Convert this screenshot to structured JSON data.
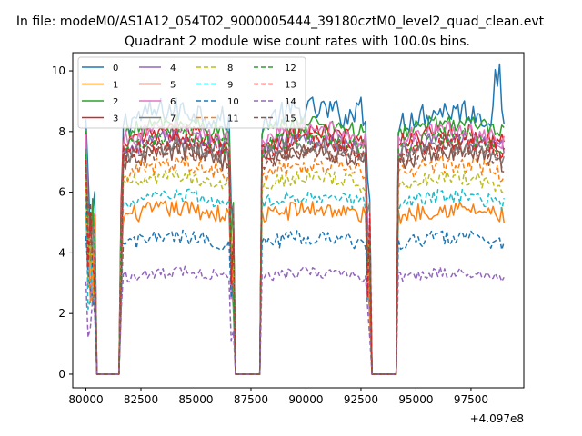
{
  "chart_data": {
    "type": "line",
    "suptitle": "In file: modeM0/AS1A12_054T02_9000005444_39180cztM0_level2_quad_clean.evt",
    "title": "Quadrant 2 module wise count rates with 100.0s bins.",
    "xlabel": "",
    "ylabel": "",
    "x_offset_label": "+4.097e8",
    "xlim": [
      79400,
      99900
    ],
    "ylim": [
      -0.45,
      10.6
    ],
    "x_ticks": [
      80000,
      82500,
      85000,
      87500,
      90000,
      92500,
      95000,
      97500
    ],
    "x_tick_labels": [
      "80000",
      "82500",
      "85000",
      "87500",
      "90000",
      "92500",
      "95000",
      "97500"
    ],
    "y_ticks": [
      0,
      2,
      4,
      6,
      8,
      10
    ],
    "y_tick_labels": [
      "0",
      "2",
      "4",
      "6",
      "8",
      "10"
    ],
    "legend_position": "upper-left",
    "legend_columns": 4,
    "on_intervals": [
      [
        81700,
        86500
      ],
      [
        88000,
        92700
      ],
      [
        94200,
        99000
      ]
    ],
    "off_intervals": [
      [
        80500,
        81500
      ],
      [
        86800,
        88000
      ],
      [
        93000,
        94100
      ]
    ],
    "series": [
      {
        "name": "0",
        "color": "#1f77b4",
        "style": "solid",
        "level": 8.3,
        "noise": 0.45,
        "peak": 10.1
      },
      {
        "name": "1",
        "color": "#ff7f0e",
        "style": "solid",
        "level": 5.2,
        "noise": 0.3
      },
      {
        "name": "2",
        "color": "#2ca02c",
        "style": "solid",
        "level": 7.9,
        "noise": 0.3
      },
      {
        "name": "3",
        "color": "#d62728",
        "style": "solid",
        "level": 7.6,
        "noise": 0.3
      },
      {
        "name": "4",
        "color": "#9467bd",
        "style": "solid",
        "level": 7.4,
        "noise": 0.3
      },
      {
        "name": "5",
        "color": "#8c564b",
        "style": "solid",
        "level": 7.0,
        "noise": 0.35
      },
      {
        "name": "6",
        "color": "#e377c2",
        "style": "solid",
        "level": 7.7,
        "noise": 0.3
      },
      {
        "name": "7",
        "color": "#7f7f7f",
        "style": "solid",
        "level": 7.2,
        "noise": 0.3
      },
      {
        "name": "8",
        "color": "#bcbd22",
        "style": "dashed",
        "level": 6.2,
        "noise": 0.25
      },
      {
        "name": "9",
        "color": "#17becf",
        "style": "dashed",
        "level": 5.6,
        "noise": 0.25
      },
      {
        "name": "10",
        "color": "#1f77b4",
        "style": "dashed",
        "level": 4.3,
        "noise": 0.25
      },
      {
        "name": "11",
        "color": "#ff7f0e",
        "style": "dashed",
        "level": 6.6,
        "noise": 0.3
      },
      {
        "name": "12",
        "color": "#2ca02c",
        "style": "dashed",
        "level": 7.5,
        "noise": 0.3
      },
      {
        "name": "13",
        "color": "#d62728",
        "style": "dashed",
        "level": 7.3,
        "noise": 0.3
      },
      {
        "name": "14",
        "color": "#9467bd",
        "style": "dashed",
        "level": 3.2,
        "noise": 0.2
      },
      {
        "name": "15",
        "color": "#8c564b",
        "style": "dashed",
        "level": 7.0,
        "noise": 0.3
      }
    ]
  }
}
